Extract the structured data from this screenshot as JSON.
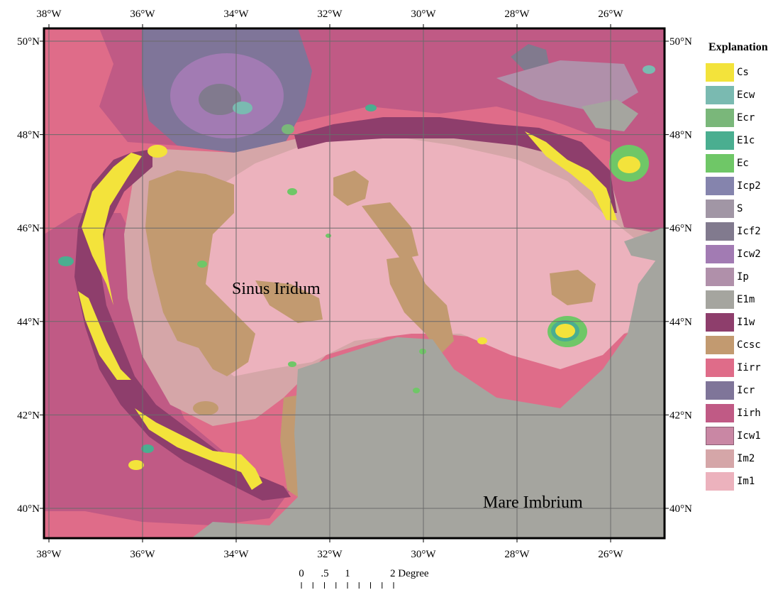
{
  "map": {
    "grid_longitudes": [
      {
        "deg": -38,
        "label": "38°W"
      },
      {
        "deg": -36,
        "label": "36°W"
      },
      {
        "deg": -34,
        "label": "34°W"
      },
      {
        "deg": -32,
        "label": "32°W"
      },
      {
        "deg": -30,
        "label": "30°W"
      },
      {
        "deg": -28,
        "label": "28°W"
      },
      {
        "deg": -26,
        "label": "26°W"
      }
    ],
    "grid_latitudes": [
      {
        "deg": 50,
        "label": "50°N"
      },
      {
        "deg": 48,
        "label": "48°N"
      },
      {
        "deg": 46,
        "label": "46°N"
      },
      {
        "deg": 44,
        "label": "44°N"
      },
      {
        "deg": 42,
        "label": "42°N"
      },
      {
        "deg": 40,
        "label": "40°N"
      }
    ],
    "labels": {
      "sinus": "Sinus Iridum",
      "mare": "Mare Imbrium"
    },
    "scale_bar": {
      "ticks": [
        "0",
        ".5",
        "1",
        "2 Degree"
      ]
    }
  },
  "legend": {
    "title": "Explanation",
    "items": [
      {
        "code": "Cs",
        "color": "#f3e33b"
      },
      {
        "code": "Ecw",
        "color": "#7abab1"
      },
      {
        "code": "Ecr",
        "color": "#7ab77a"
      },
      {
        "code": "E1c",
        "color": "#4aae90"
      },
      {
        "code": "Ec",
        "color": "#6fc767"
      },
      {
        "code": "Icp2",
        "color": "#8584ad"
      },
      {
        "code": "S",
        "color": "#a196a5"
      },
      {
        "code": "Icf2",
        "color": "#817a8e"
      },
      {
        "code": "Icw2",
        "color": "#a27bb3"
      },
      {
        "code": "Ip",
        "color": "#b090aa"
      },
      {
        "code": "E1m",
        "color": "#a5a59f"
      },
      {
        "code": "I1w",
        "color": "#8e3e6c"
      },
      {
        "code": "Ccsc",
        "color": "#c29a70"
      },
      {
        "code": "Iirr",
        "color": "#df6c89"
      },
      {
        "code": "Icr",
        "color": "#7f7599"
      },
      {
        "code": "Iirh",
        "color": "#c05a85"
      },
      {
        "code": "Icw1",
        "color": "#c987a4"
      },
      {
        "code": "Im2",
        "color": "#d5a6a8"
      },
      {
        "code": "Im1",
        "color": "#ecb2bd"
      }
    ]
  }
}
